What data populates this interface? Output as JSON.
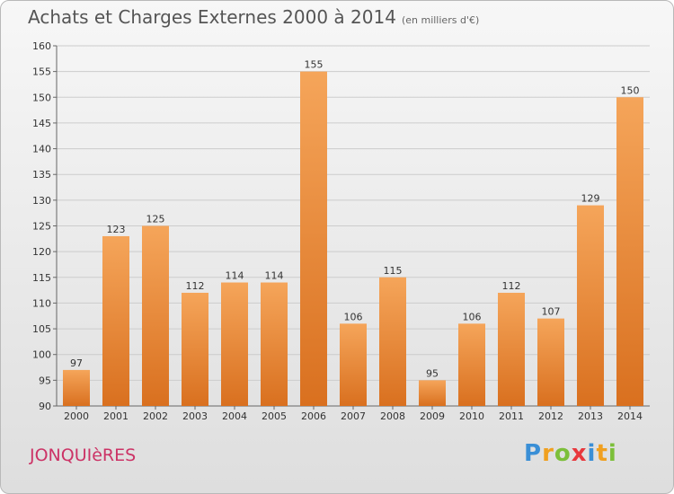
{
  "title": "Achats et Charges Externes 2000 à 2014",
  "subtitle": "(en milliers d'€)",
  "place": "JONQUIèRES",
  "logo": {
    "text": "Proxiti",
    "letters": [
      {
        "ch": "P",
        "color": "#3a8fd6"
      },
      {
        "ch": "r",
        "color": "#f0a020"
      },
      {
        "ch": "o",
        "color": "#7cbf3a"
      },
      {
        "ch": "x",
        "color": "#e8383d"
      },
      {
        "ch": "i",
        "color": "#3a8fd6"
      },
      {
        "ch": "t",
        "color": "#f0a020"
      },
      {
        "ch": "i",
        "color": "#7cbf3a"
      }
    ]
  },
  "colors": {
    "bar_light": "#f5a55a",
    "bar_dark": "#d9701f",
    "grid": "#cccccc",
    "place": "#cc3366"
  },
  "chart_data": {
    "type": "bar",
    "categories": [
      "2000",
      "2001",
      "2002",
      "2003",
      "2004",
      "2005",
      "2006",
      "2007",
      "2008",
      "2009",
      "2010",
      "2011",
      "2012",
      "2013",
      "2014"
    ],
    "values": [
      97,
      123,
      125,
      112,
      114,
      114,
      155,
      106,
      115,
      95,
      106,
      112,
      107,
      129,
      150
    ],
    "ylim": [
      90,
      160
    ],
    "yticks": [
      90,
      95,
      100,
      105,
      110,
      115,
      120,
      125,
      130,
      135,
      140,
      145,
      150,
      155,
      160
    ],
    "grid": true,
    "xlabel": "",
    "ylabel": ""
  }
}
